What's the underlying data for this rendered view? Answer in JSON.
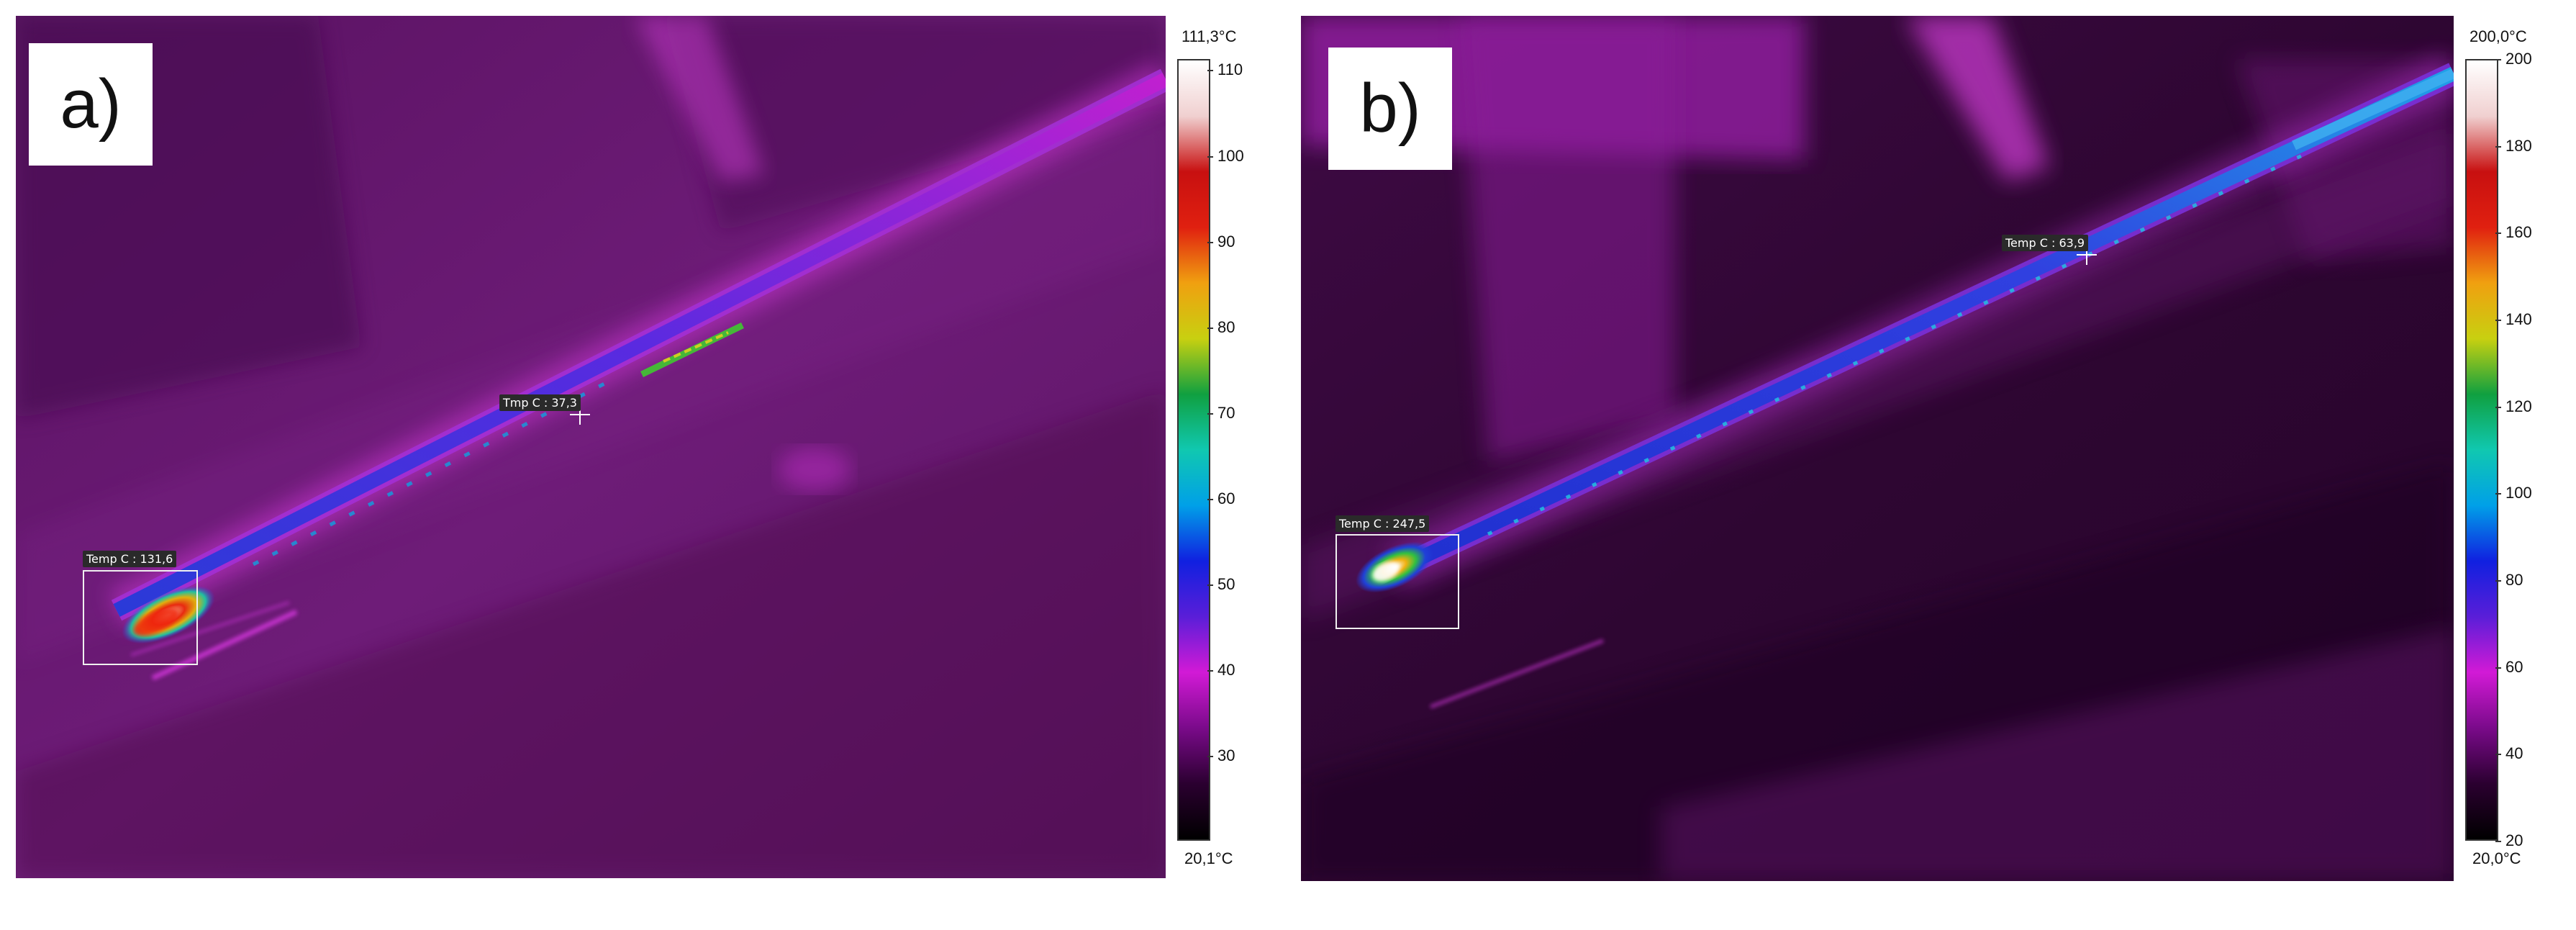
{
  "panels": [
    {
      "label": "a)",
      "scale": {
        "max_label": "111,3°C",
        "min_label": "20,1°C",
        "min": 20.1,
        "max": 111.3,
        "ticks": [
          "110",
          "100",
          "90",
          "80",
          "70",
          "60",
          "50",
          "40",
          "30"
        ],
        "tick_values": [
          110,
          100,
          90,
          80,
          70,
          60,
          50,
          40,
          30
        ]
      },
      "readouts": {
        "spot": "Tmp C : 37,3",
        "roi": "Temp C : 131,6"
      }
    },
    {
      "label": "b)",
      "scale": {
        "max_label": "200,0°C",
        "min_label": "20,0°C",
        "min": 20.0,
        "max": 200.0,
        "ticks": [
          "200",
          "180",
          "160",
          "140",
          "120",
          "100",
          "80",
          "60",
          "40",
          "20"
        ],
        "tick_values": [
          200,
          180,
          160,
          140,
          120,
          100,
          80,
          60,
          40,
          20
        ]
      },
      "readouts": {
        "spot": "Temp C : 63,9",
        "roi": "Temp C : 247,5"
      }
    }
  ],
  "colors": {
    "background_dark": "#3a0a3e",
    "background_mid": "#6a1a72",
    "wire_core": "#3a2ad0",
    "hot_spot": "#e03010",
    "palette": [
      "#000000",
      "#2b0030",
      "#7a0a8a",
      "#d21ad6",
      "#5a1ed8",
      "#1020e0",
      "#00a0e8",
      "#10c8b0",
      "#10a040",
      "#c8d010",
      "#f0a010",
      "#e02010",
      "#c81010",
      "#f0d0d0",
      "#ffffff"
    ]
  }
}
